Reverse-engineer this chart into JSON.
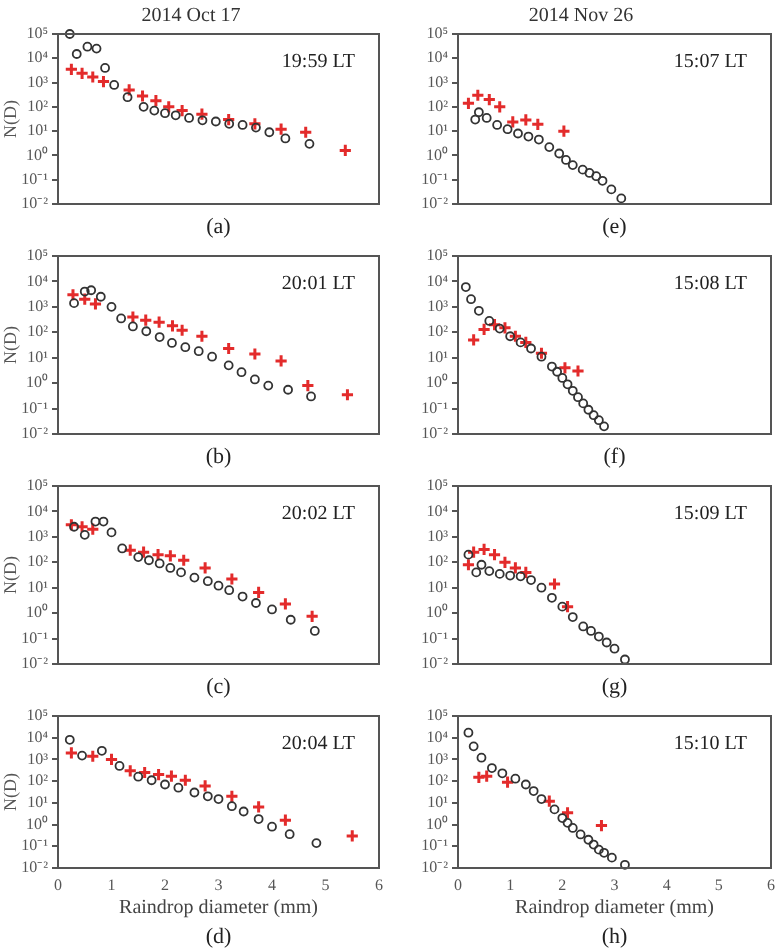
{
  "chart_data": [
    {
      "type": "scatter",
      "title": "2014 Oct 17",
      "ylabel": "N(D)",
      "annotations": [
        "19:59 LT",
        "(a)"
      ],
      "xlim": [
        0,
        6
      ],
      "xticks": [
        0,
        1,
        2,
        3,
        4,
        5,
        6
      ],
      "ylim": [
        0.01,
        100000
      ],
      "yticks": [
        {
          "value": 0.01,
          "label": "10⁻²"
        },
        {
          "value": 0.1,
          "label": "10⁻¹"
        },
        {
          "value": 1,
          "label": "10⁰"
        },
        {
          "value": 10,
          "label": "10¹"
        },
        {
          "value": 100,
          "label": "10²"
        },
        {
          "value": 1000,
          "label": "10³"
        },
        {
          "value": 10000,
          "label": "10⁴"
        },
        {
          "value": 100000,
          "label": "10⁵"
        }
      ],
      "log": "y",
      "tick_labels": "y",
      "series": [
        {
          "color": "#333333",
          "marker": "circle",
          "x": [
            0.22,
            0.35,
            0.55,
            0.72,
            0.88,
            1.05,
            1.3,
            1.6,
            1.8,
            2.0,
            2.2,
            2.45,
            2.7,
            2.95,
            3.2,
            3.45,
            3.7,
            3.95,
            4.25,
            4.7
          ],
          "values": [
            100000,
            15000,
            30000,
            25000,
            4000,
            800,
            250,
            100,
            70,
            55,
            45,
            35,
            28,
            25,
            20,
            18,
            14,
            9,
            5,
            3
          ]
        },
        {
          "color": "#e32b2b",
          "marker": "cross",
          "x": [
            0.25,
            0.45,
            0.65,
            0.85,
            1.33,
            1.58,
            1.83,
            2.07,
            2.32,
            2.69,
            3.19,
            3.68,
            4.17,
            4.63,
            5.37
          ],
          "values": [
            3500,
            2400,
            1700,
            1100,
            500,
            280,
            180,
            100,
            70,
            50,
            30,
            20,
            12,
            9,
            1.6
          ]
        }
      ]
    },
    {
      "type": "scatter",
      "title": "2014 Nov 26",
      "annotations": [
        "15:07 LT",
        "(e)"
      ],
      "xlim": [
        0,
        6
      ],
      "xticks": [
        0,
        1,
        2,
        3,
        4,
        5,
        6
      ],
      "ylim": [
        0.01,
        100000
      ],
      "yticks": [
        {
          "value": 0.01,
          "label": "10⁻²"
        },
        {
          "value": 0.1,
          "label": "10⁻¹"
        },
        {
          "value": 1,
          "label": "10⁰"
        },
        {
          "value": 10,
          "label": "10¹"
        },
        {
          "value": 100,
          "label": "10²"
        },
        {
          "value": 1000,
          "label": "10³"
        },
        {
          "value": 10000,
          "label": "10⁴"
        },
        {
          "value": 100000,
          "label": "10⁵"
        }
      ],
      "log": "y",
      "tick_labels": "y",
      "series": [
        {
          "color": "#333333",
          "marker": "circle",
          "x": [
            0.33,
            0.4,
            0.55,
            0.75,
            0.95,
            1.15,
            1.35,
            1.55,
            1.75,
            1.94,
            2.07,
            2.2,
            2.39,
            2.52,
            2.65,
            2.77,
            2.94,
            3.13
          ],
          "values": [
            30,
            60,
            35,
            18,
            12,
            8,
            6,
            4.5,
            2.2,
            1.2,
            0.65,
            0.4,
            0.26,
            0.19,
            0.14,
            0.09,
            0.04,
            0.017
          ]
        },
        {
          "color": "#e32b2b",
          "marker": "cross",
          "x": [
            0.2,
            0.38,
            0.6,
            0.8,
            1.05,
            1.3,
            1.53,
            2.03
          ],
          "values": [
            140,
            300,
            200,
            100,
            24,
            29,
            19,
            10
          ]
        }
      ]
    },
    {
      "type": "scatter",
      "ylabel": "N(D)",
      "annotations": [
        "20:01 LT",
        "(b)"
      ],
      "xlim": [
        0,
        6
      ],
      "xticks": [
        0,
        1,
        2,
        3,
        4,
        5,
        6
      ],
      "ylim": [
        0.01,
        100000
      ],
      "yticks": [
        {
          "value": 0.01,
          "label": "10⁻²"
        },
        {
          "value": 0.1,
          "label": "10⁻¹"
        },
        {
          "value": 1,
          "label": "10⁰"
        },
        {
          "value": 10,
          "label": "10¹"
        },
        {
          "value": 100,
          "label": "10²"
        },
        {
          "value": 1000,
          "label": "10³"
        },
        {
          "value": 10000,
          "label": "10⁴"
        },
        {
          "value": 100000,
          "label": "10⁵"
        }
      ],
      "log": "y",
      "tick_labels": "y",
      "series": [
        {
          "color": "#333333",
          "marker": "circle",
          "x": [
            0.3,
            0.5,
            0.62,
            0.8,
            1.0,
            1.18,
            1.4,
            1.65,
            1.9,
            2.13,
            2.38,
            2.63,
            2.88,
            3.19,
            3.43,
            3.68,
            3.93,
            4.3,
            4.73
          ],
          "values": [
            1400,
            4000,
            4500,
            2500,
            1000,
            350,
            170,
            110,
            65,
            38,
            26,
            18,
            11,
            5,
            2.7,
            1.4,
            0.8,
            0.55,
            0.3
          ]
        },
        {
          "color": "#e32b2b",
          "marker": "cross",
          "x": [
            0.28,
            0.5,
            0.7,
            1.4,
            1.64,
            1.89,
            2.14,
            2.32,
            2.69,
            3.19,
            3.68,
            4.17,
            4.67,
            5.41
          ],
          "values": [
            3000,
            2000,
            1300,
            400,
            300,
            250,
            180,
            120,
            70,
            23,
            14,
            7.5,
            0.8,
            0.35
          ]
        }
      ]
    },
    {
      "type": "scatter",
      "annotations": [
        "15:08 LT",
        "(f)"
      ],
      "xlim": [
        0,
        6
      ],
      "xticks": [
        0,
        1,
        2,
        3,
        4,
        5,
        6
      ],
      "ylim": [
        0.01,
        100000
      ],
      "yticks": [
        {
          "value": 0.01,
          "label": "10⁻²"
        },
        {
          "value": 0.1,
          "label": "10⁻¹"
        },
        {
          "value": 1,
          "label": "10⁰"
        },
        {
          "value": 10,
          "label": "10¹"
        },
        {
          "value": 100,
          "label": "10²"
        },
        {
          "value": 1000,
          "label": "10³"
        },
        {
          "value": 10000,
          "label": "10⁴"
        },
        {
          "value": 100000,
          "label": "10⁵"
        }
      ],
      "log": "y",
      "tick_labels": "y",
      "series": [
        {
          "color": "#333333",
          "marker": "circle",
          "x": [
            0.15,
            0.25,
            0.4,
            0.6,
            0.8,
            1.0,
            1.2,
            1.4,
            1.6,
            1.8,
            1.9,
            2.0,
            2.1,
            2.2,
            2.3,
            2.4,
            2.5,
            2.6,
            2.7,
            2.8
          ],
          "values": [
            6000,
            2000,
            700,
            280,
            140,
            70,
            40,
            23,
            11,
            4.5,
            2.8,
            1.6,
            0.9,
            0.5,
            0.28,
            0.16,
            0.09,
            0.055,
            0.035,
            0.02
          ]
        },
        {
          "color": "#e32b2b",
          "marker": "cross",
          "x": [
            0.3,
            0.5,
            0.7,
            0.9,
            1.1,
            1.3,
            1.6,
            2.05,
            2.3
          ],
          "values": [
            50,
            130,
            200,
            150,
            70,
            40,
            15,
            4,
            3
          ]
        }
      ]
    },
    {
      "type": "scatter",
      "ylabel": "N(D)",
      "annotations": [
        "20:02 LT",
        "(c)"
      ],
      "xlim": [
        0,
        6
      ],
      "xticks": [
        0,
        1,
        2,
        3,
        4,
        5,
        6
      ],
      "ylim": [
        0.01,
        100000
      ],
      "yticks": [
        {
          "value": 0.01,
          "label": "10⁻²"
        },
        {
          "value": 0.1,
          "label": "10⁻¹"
        },
        {
          "value": 1,
          "label": "10⁰"
        },
        {
          "value": 10,
          "label": "10¹"
        },
        {
          "value": 100,
          "label": "10²"
        },
        {
          "value": 1000,
          "label": "10³"
        },
        {
          "value": 10000,
          "label": "10⁴"
        },
        {
          "value": 100000,
          "label": "10⁵"
        }
      ],
      "log": "y",
      "tick_labels": "y",
      "series": [
        {
          "color": "#333333",
          "marker": "circle",
          "x": [
            0.3,
            0.5,
            0.7,
            0.85,
            1.0,
            1.2,
            1.5,
            1.7,
            1.9,
            2.1,
            2.3,
            2.55,
            2.8,
            3.0,
            3.2,
            3.45,
            3.7,
            4.0,
            4.35,
            4.8
          ],
          "values": [
            2500,
            1200,
            4000,
            4000,
            1500,
            350,
            160,
            120,
            90,
            60,
            40,
            25,
            18,
            12,
            8,
            4.5,
            2.5,
            1.4,
            0.55,
            0.2
          ]
        },
        {
          "color": "#e32b2b",
          "marker": "cross",
          "x": [
            0.25,
            0.45,
            0.65,
            1.35,
            1.6,
            1.87,
            2.1,
            2.35,
            2.75,
            3.25,
            3.75,
            4.25,
            4.75
          ],
          "values": [
            3000,
            2500,
            2000,
            300,
            250,
            200,
            180,
            120,
            60,
            22,
            6.5,
            2.3,
            0.75
          ]
        }
      ]
    },
    {
      "type": "scatter",
      "annotations": [
        "15:09 LT",
        "(g)"
      ],
      "xlim": [
        0,
        6
      ],
      "xticks": [
        0,
        1,
        2,
        3,
        4,
        5,
        6
      ],
      "ylim": [
        0.01,
        100000
      ],
      "yticks": [
        {
          "value": 0.01,
          "label": "10⁻²"
        },
        {
          "value": 0.1,
          "label": "10⁻¹"
        },
        {
          "value": 1,
          "label": "10⁰"
        },
        {
          "value": 10,
          "label": "10¹"
        },
        {
          "value": 100,
          "label": "10²"
        },
        {
          "value": 1000,
          "label": "10³"
        },
        {
          "value": 10000,
          "label": "10⁴"
        },
        {
          "value": 100000,
          "label": "10⁵"
        }
      ],
      "log": "y",
      "tick_labels": "y",
      "series": [
        {
          "color": "#333333",
          "marker": "circle",
          "x": [
            0.2,
            0.35,
            0.45,
            0.6,
            0.8,
            1.0,
            1.2,
            1.4,
            1.6,
            1.8,
            2.0,
            2.2,
            2.4,
            2.55,
            2.7,
            2.85,
            3.0,
            3.2
          ],
          "values": [
            200,
            40,
            80,
            45,
            35,
            30,
            28,
            20,
            10,
            4,
            1.8,
            0.7,
            0.3,
            0.2,
            0.12,
            0.07,
            0.04,
            0.015
          ]
        },
        {
          "color": "#e32b2b",
          "marker": "cross",
          "x": [
            0.2,
            0.3,
            0.5,
            0.7,
            0.9,
            1.1,
            1.3,
            1.85,
            2.1
          ],
          "values": [
            80,
            250,
            320,
            200,
            100,
            60,
            40,
            14,
            1.8
          ]
        }
      ]
    },
    {
      "type": "scatter",
      "xlabel": "Raindrop diameter (mm)",
      "ylabel": "N(D)",
      "annotations": [
        "20:04 LT",
        "(d)"
      ],
      "xlim": [
        0,
        6
      ],
      "xticks": [
        0,
        1,
        2,
        3,
        4,
        5,
        6
      ],
      "ylim": [
        0.01,
        100000
      ],
      "yticks": [
        {
          "value": 0.01,
          "label": "10⁻²"
        },
        {
          "value": 0.1,
          "label": "10⁻¹"
        },
        {
          "value": 1,
          "label": "10⁰"
        },
        {
          "value": 10,
          "label": "10¹"
        },
        {
          "value": 100,
          "label": "10²"
        },
        {
          "value": 1000,
          "label": "10³"
        },
        {
          "value": 10000,
          "label": "10⁴"
        },
        {
          "value": 100000,
          "label": "10⁵"
        }
      ],
      "log": "y",
      "series": [
        {
          "color": "#333333",
          "marker": "circle",
          "x": [
            0.22,
            0.45,
            0.82,
            1.15,
            1.5,
            1.75,
            2.0,
            2.25,
            2.55,
            2.8,
            3.0,
            3.25,
            3.47,
            3.75,
            4.0,
            4.33,
            4.83
          ],
          "values": [
            8000,
            1500,
            2500,
            500,
            160,
            110,
            70,
            50,
            30,
            20,
            15,
            7,
            4,
            1.8,
            0.8,
            0.36,
            0.14
          ]
        },
        {
          "color": "#e32b2b",
          "marker": "cross",
          "x": [
            0.25,
            0.65,
            1.0,
            1.35,
            1.62,
            1.88,
            2.12,
            2.38,
            2.75,
            3.25,
            3.75,
            4.25,
            5.5
          ],
          "values": [
            2000,
            1400,
            1000,
            300,
            250,
            200,
            170,
            110,
            60,
            20,
            6.5,
            1.6,
            0.3
          ]
        }
      ]
    },
    {
      "type": "scatter",
      "xlabel": "Raindrop diameter (mm)",
      "annotations": [
        "15:10 LT",
        "(h)"
      ],
      "xlim": [
        0,
        6
      ],
      "xticks": [
        0,
        1,
        2,
        3,
        4,
        5,
        6
      ],
      "ylim": [
        0.01,
        100000
      ],
      "yticks": [
        {
          "value": 0.01,
          "label": "10⁻²"
        },
        {
          "value": 0.1,
          "label": "10⁻¹"
        },
        {
          "value": 1,
          "label": "10⁰"
        },
        {
          "value": 10,
          "label": "10¹"
        },
        {
          "value": 100,
          "label": "10²"
        },
        {
          "value": 1000,
          "label": "10³"
        },
        {
          "value": 10000,
          "label": "10⁴"
        },
        {
          "value": 100000,
          "label": "10⁵"
        }
      ],
      "log": "y",
      "series": [
        {
          "color": "#333333",
          "marker": "circle",
          "x": [
            0.2,
            0.3,
            0.45,
            0.65,
            0.85,
            1.1,
            1.3,
            1.45,
            1.6,
            1.85,
            2.0,
            2.1,
            2.2,
            2.35,
            2.5,
            2.6,
            2.7,
            2.8,
            2.95,
            3.2
          ],
          "values": [
            17000,
            4000,
            1200,
            400,
            230,
            130,
            70,
            35,
            15,
            5,
            2,
            1.2,
            0.7,
            0.35,
            0.2,
            0.12,
            0.07,
            0.05,
            0.03,
            0.014
          ]
        },
        {
          "color": "#e32b2b",
          "marker": "cross",
          "x": [
            0.4,
            0.55,
            0.95,
            1.75,
            2.1,
            2.75
          ],
          "values": [
            150,
            170,
            90,
            12,
            3.5,
            0.9
          ]
        }
      ]
    }
  ]
}
